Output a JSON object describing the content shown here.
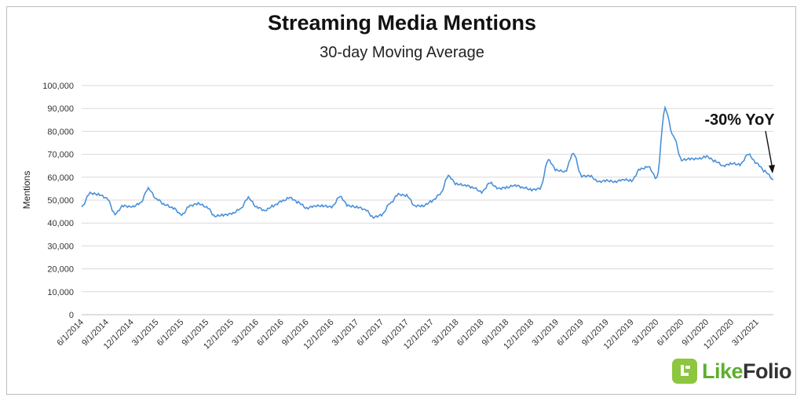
{
  "colors": {
    "line": "#4a90d9",
    "grid": "#d9d9d9",
    "brand_green": "#8dc63f"
  },
  "logo": {
    "text_like": "Like",
    "text_folio": "Folio",
    "icon": "likefolio-logo-icon"
  },
  "chart_data": {
    "type": "line",
    "title": "Streaming Media Mentions",
    "subtitle": "30-day Moving Average",
    "xlabel": "",
    "ylabel": "Mentions",
    "ylim": [
      0,
      100000
    ],
    "yticks": [
      "0",
      "10,000",
      "20,000",
      "30,000",
      "40,000",
      "50,000",
      "60,000",
      "70,000",
      "80,000",
      "90,000",
      "100,000"
    ],
    "xticks": [
      "6/1/2014",
      "9/1/2014",
      "12/1/2014",
      "3/1/2015",
      "6/1/2015",
      "9/1/2015",
      "12/1/2015",
      "3/1/2016",
      "6/1/2016",
      "9/1/2016",
      "12/1/2016",
      "3/1/2017",
      "6/1/2017",
      "9/1/2017",
      "12/1/2017",
      "3/1/2018",
      "6/1/2018",
      "9/1/2018",
      "12/1/2018",
      "3/1/2019",
      "6/1/2019",
      "9/1/2019",
      "12/1/2019",
      "3/1/2020",
      "6/1/2020",
      "9/1/2020",
      "12/1/2020",
      "3/1/2021"
    ],
    "grid": true,
    "annotation": {
      "text": "-30% YoY"
    },
    "series": [
      {
        "x": [
          "6/1/2014",
          "7/1/2014",
          "8/1/2014",
          "9/1/2014",
          "10/1/2014",
          "11/1/2014",
          "12/1/2014",
          "1/1/2015",
          "2/1/2015",
          "3/1/2015",
          "4/1/2015",
          "5/1/2015",
          "6/1/2015",
          "7/1/2015",
          "8/1/2015",
          "9/1/2015",
          "10/1/2015",
          "11/1/2015",
          "12/1/2015",
          "1/1/2016",
          "2/1/2016",
          "3/1/2016",
          "4/1/2016",
          "5/1/2016",
          "6/1/2016",
          "7/1/2016",
          "8/1/2016",
          "9/1/2016",
          "10/1/2016",
          "11/1/2016",
          "12/1/2016",
          "1/1/2017",
          "2/1/2017",
          "3/1/2017",
          "4/1/2017",
          "5/1/2017",
          "6/1/2017",
          "7/1/2017",
          "8/1/2017",
          "9/1/2017",
          "10/1/2017",
          "11/1/2017",
          "12/1/2017",
          "1/1/2018",
          "2/1/2018",
          "3/1/2018",
          "4/1/2018",
          "5/1/2018",
          "6/1/2018",
          "7/1/2018",
          "8/1/2018",
          "9/1/2018",
          "10/1/2018",
          "11/1/2018",
          "12/1/2018",
          "1/1/2019",
          "2/1/2019",
          "3/1/2019",
          "4/1/2019",
          "5/1/2019",
          "6/1/2019",
          "7/1/2019",
          "8/1/2019",
          "9/1/2019",
          "10/1/2019",
          "11/1/2019",
          "12/1/2019",
          "1/1/2020",
          "2/1/2020",
          "3/1/2020",
          "4/1/2020",
          "5/1/2020",
          "6/1/2020",
          "7/1/2020",
          "8/1/2020",
          "9/1/2020",
          "10/1/2020",
          "11/1/2020",
          "12/1/2020",
          "1/1/2021",
          "2/1/2021",
          "3/1/2021",
          "4/1/2021",
          "5/1/2021"
        ],
        "values": [
          47000,
          53000,
          52500,
          51000,
          44000,
          47500,
          47000,
          48500,
          55000,
          50500,
          48000,
          46500,
          43500,
          47500,
          48500,
          47000,
          43000,
          43500,
          44000,
          46000,
          51000,
          47000,
          45500,
          47500,
          49500,
          51000,
          49000,
          46500,
          47500,
          47500,
          47000,
          51500,
          47500,
          47000,
          46000,
          42500,
          43500,
          48500,
          52500,
          52000,
          47500,
          47500,
          49500,
          52500,
          60500,
          57000,
          56500,
          55500,
          53500,
          57500,
          55000,
          55500,
          56500,
          55500,
          54500,
          55000,
          67500,
          63000,
          62500,
          70500,
          60500,
          60500,
          58000,
          58500,
          58000,
          59000,
          58500,
          63500,
          64500,
          59500,
          90000,
          78000,
          67500,
          68000,
          68000,
          69000,
          67000,
          65000,
          66000,
          65500,
          70000,
          66000,
          62500,
          59000
        ]
      }
    ]
  }
}
